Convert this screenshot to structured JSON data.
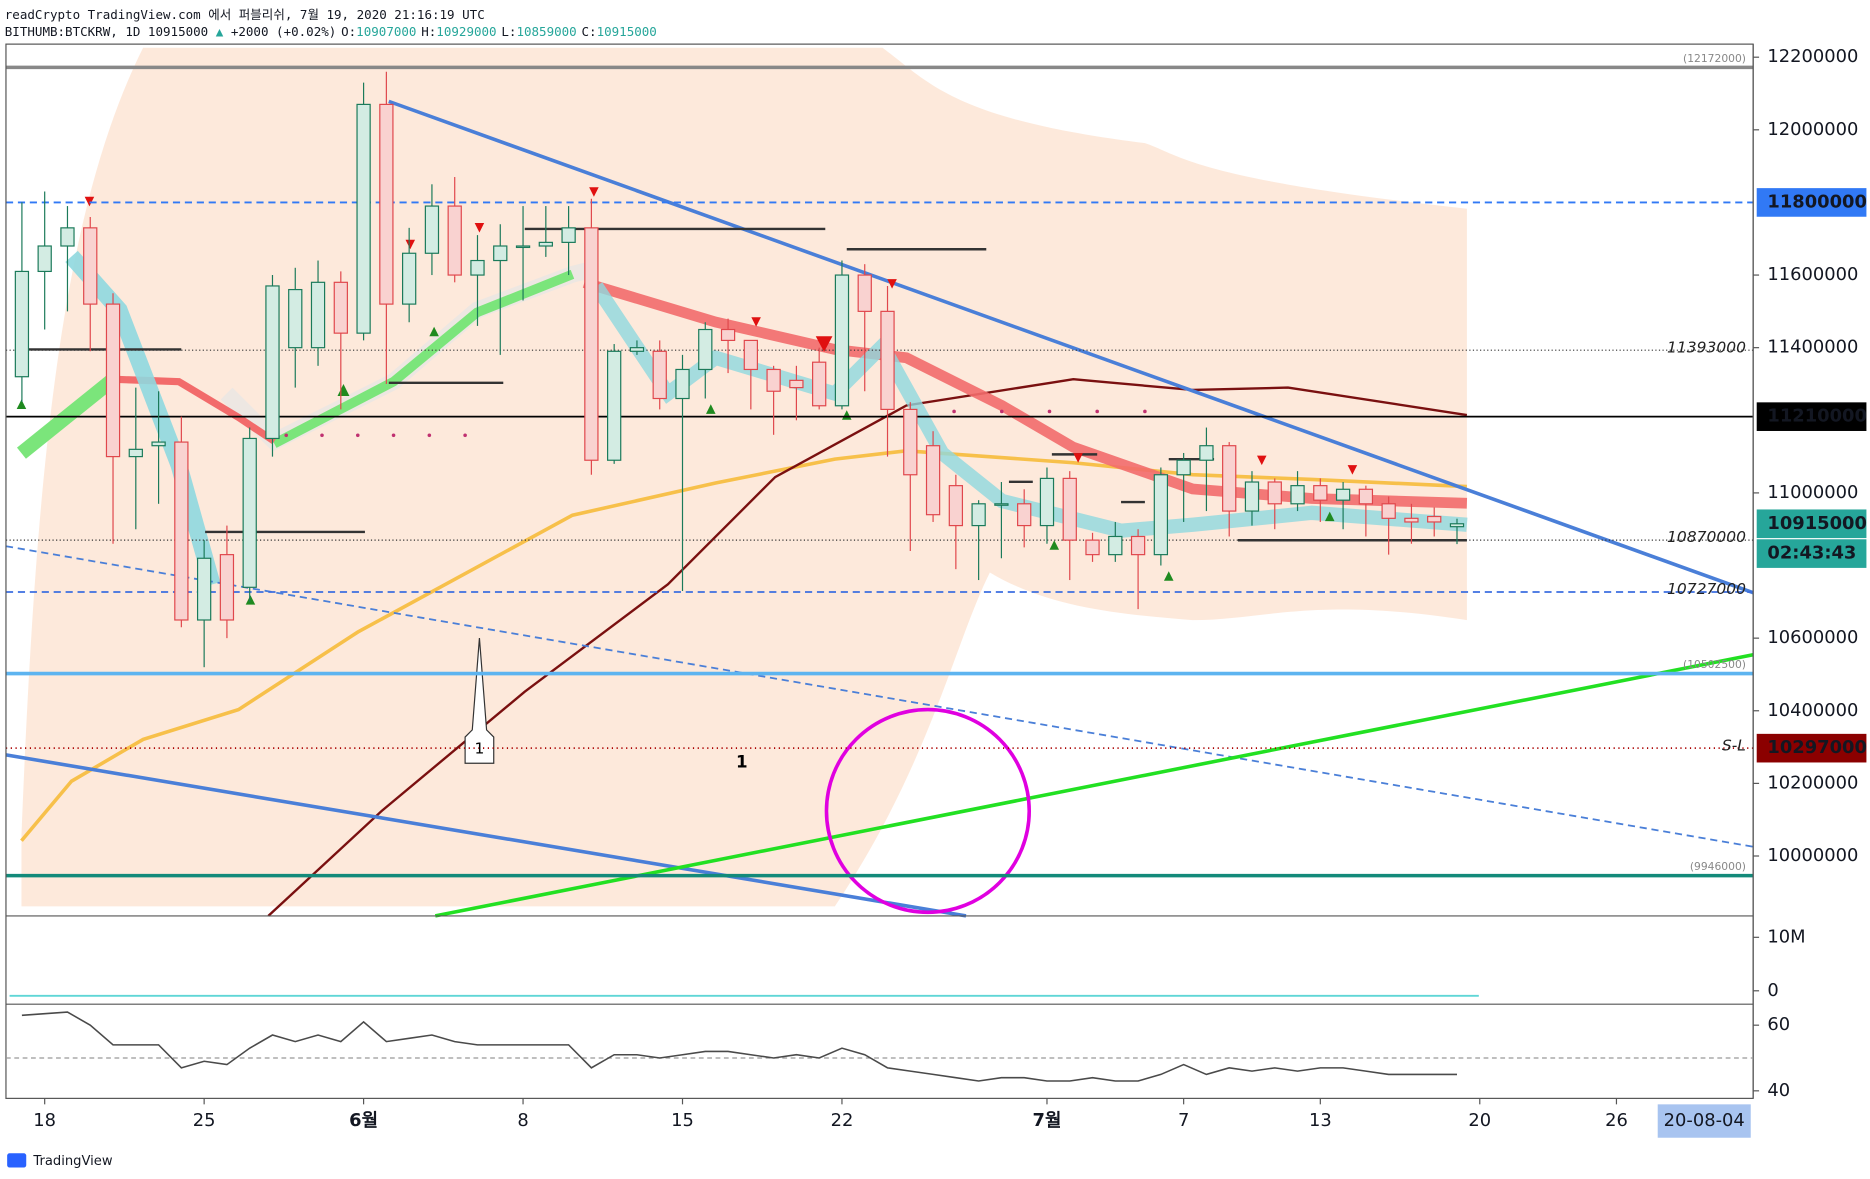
{
  "header": {
    "line1": "readCrypto TradingView.com 에서 퍼블리쉬, 7월 19, 2020 21:16:19 UTC",
    "symbol": "BITHUMB:BTCKRW, 1D 10915000",
    "change": "+2000 (+0.02%)",
    "ohlc": [
      {
        "key": "O:",
        "value": "10907000"
      },
      {
        "key": "H:",
        "value": "10929000"
      },
      {
        "key": "L:",
        "value": "10859000"
      },
      {
        "key": "C:",
        "value": "10915000"
      }
    ]
  },
  "chart_data": {
    "type": "candlestick",
    "up_color": "#1b7a5a",
    "down_color": "#e0474c",
    "candles": [
      {
        "o": 11320000,
        "h": 11800000,
        "l": 11250000,
        "c": 11610000
      },
      {
        "o": 11610000,
        "h": 11830000,
        "l": 11450000,
        "c": 11680000
      },
      {
        "o": 11680000,
        "h": 11790000,
        "l": 11500000,
        "c": 11730000
      },
      {
        "o": 11730000,
        "h": 11760000,
        "l": 11390000,
        "c": 11520000
      },
      {
        "o": 11520000,
        "h": 11550000,
        "l": 10860000,
        "c": 11100000
      },
      {
        "o": 11100000,
        "h": 11290000,
        "l": 10900000,
        "c": 11120000
      },
      {
        "o": 11130000,
        "h": 11280000,
        "l": 10970000,
        "c": 11140000
      },
      {
        "o": 11140000,
        "h": 11210000,
        "l": 10630000,
        "c": 10650000
      },
      {
        "o": 10650000,
        "h": 10870000,
        "l": 10520000,
        "c": 10820000
      },
      {
        "o": 10830000,
        "h": 10910000,
        "l": 10600000,
        "c": 10650000
      },
      {
        "o": 10740000,
        "h": 11180000,
        "l": 10700000,
        "c": 11150000
      },
      {
        "o": 11150000,
        "h": 11600000,
        "l": 11100000,
        "c": 11570000
      },
      {
        "o": 11400000,
        "h": 11620000,
        "l": 11290000,
        "c": 11560000
      },
      {
        "o": 11400000,
        "h": 11640000,
        "l": 11350000,
        "c": 11580000
      },
      {
        "o": 11580000,
        "h": 11610000,
        "l": 11230000,
        "c": 11440000
      },
      {
        "o": 11440000,
        "h": 12130000,
        "l": 11420000,
        "c": 12070000
      },
      {
        "o": 12070000,
        "h": 12160000,
        "l": 11300000,
        "c": 11520000
      },
      {
        "o": 11520000,
        "h": 11730000,
        "l": 11470000,
        "c": 11660000
      },
      {
        "o": 11660000,
        "h": 11850000,
        "l": 11600000,
        "c": 11790000
      },
      {
        "o": 11790000,
        "h": 11870000,
        "l": 11580000,
        "c": 11600000
      },
      {
        "o": 11600000,
        "h": 11710000,
        "l": 11460000,
        "c": 11640000
      },
      {
        "o": 11640000,
        "h": 11740000,
        "l": 11380000,
        "c": 11680000
      },
      {
        "o": 11680000,
        "h": 11790000,
        "l": 11530000,
        "c": 11680000
      },
      {
        "o": 11680000,
        "h": 11790000,
        "l": 11650000,
        "c": 11690000
      },
      {
        "o": 11690000,
        "h": 11790000,
        "l": 11600000,
        "c": 11730000
      },
      {
        "o": 11730000,
        "h": 11810000,
        "l": 11050000,
        "c": 11090000
      },
      {
        "o": 11090000,
        "h": 11410000,
        "l": 11080000,
        "c": 11390000
      },
      {
        "o": 11390000,
        "h": 11420000,
        "l": 11380000,
        "c": 11400000
      },
      {
        "o": 11390000,
        "h": 11420000,
        "l": 11230000,
        "c": 11260000
      },
      {
        "o": 11260000,
        "h": 11380000,
        "l": 10730000,
        "c": 11340000
      },
      {
        "o": 11340000,
        "h": 11470000,
        "l": 11260000,
        "c": 11450000
      },
      {
        "o": 11450000,
        "h": 11480000,
        "l": 11330000,
        "c": 11420000
      },
      {
        "o": 11420000,
        "h": 11420000,
        "l": 11230000,
        "c": 11340000
      },
      {
        "o": 11340000,
        "h": 11350000,
        "l": 11160000,
        "c": 11280000
      },
      {
        "o": 11310000,
        "h": 11350000,
        "l": 11200000,
        "c": 11290000
      },
      {
        "o": 11360000,
        "h": 11400000,
        "l": 11230000,
        "c": 11240000
      },
      {
        "o": 11240000,
        "h": 11640000,
        "l": 11230000,
        "c": 11600000
      },
      {
        "o": 11600000,
        "h": 11630000,
        "l": 11280000,
        "c": 11500000
      },
      {
        "o": 11500000,
        "h": 11570000,
        "l": 11100000,
        "c": 11230000
      },
      {
        "o": 11230000,
        "h": 11250000,
        "l": 10840000,
        "c": 11050000
      },
      {
        "o": 11130000,
        "h": 11170000,
        "l": 10920000,
        "c": 10940000
      },
      {
        "o": 11020000,
        "h": 11050000,
        "l": 10790000,
        "c": 10910000
      },
      {
        "o": 10910000,
        "h": 10980000,
        "l": 10760000,
        "c": 10970000
      },
      {
        "o": 10970000,
        "h": 11030000,
        "l": 10820000,
        "c": 10970000
      },
      {
        "o": 10970000,
        "h": 11010000,
        "l": 10850000,
        "c": 10910000
      },
      {
        "o": 10910000,
        "h": 11070000,
        "l": 10860000,
        "c": 11040000
      },
      {
        "o": 11040000,
        "h": 11060000,
        "l": 10760000,
        "c": 10870000
      },
      {
        "o": 10870000,
        "h": 10890000,
        "l": 10810000,
        "c": 10830000
      },
      {
        "o": 10830000,
        "h": 10920000,
        "l": 10810000,
        "c": 10880000
      },
      {
        "o": 10880000,
        "h": 10900000,
        "l": 10680000,
        "c": 10830000
      },
      {
        "o": 10830000,
        "h": 11070000,
        "l": 10800000,
        "c": 11050000
      },
      {
        "o": 11050000,
        "h": 11110000,
        "l": 10920000,
        "c": 11090000
      },
      {
        "o": 11090000,
        "h": 11180000,
        "l": 10950000,
        "c": 11130000
      },
      {
        "o": 11130000,
        "h": 11140000,
        "l": 10880000,
        "c": 10950000
      },
      {
        "o": 10950000,
        "h": 11060000,
        "l": 10910000,
        "c": 11030000
      },
      {
        "o": 11030000,
        "h": 11040000,
        "l": 10900000,
        "c": 10970000
      },
      {
        "o": 10970000,
        "h": 11060000,
        "l": 10950000,
        "c": 11020000
      },
      {
        "o": 11020000,
        "h": 11040000,
        "l": 10920000,
        "c": 10980000
      },
      {
        "o": 10980000,
        "h": 11030000,
        "l": 10900000,
        "c": 11010000
      },
      {
        "o": 11010000,
        "h": 11020000,
        "l": 10880000,
        "c": 10970000
      },
      {
        "o": 10970000,
        "h": 10990000,
        "l": 10830000,
        "c": 10930000
      },
      {
        "o": 10930000,
        "h": 10970000,
        "l": 10860000,
        "c": 10920000
      },
      {
        "o": 10935000,
        "h": 10960000,
        "l": 10880000,
        "c": 10920000
      },
      {
        "o": 10907000,
        "h": 10929000,
        "l": 10859000,
        "c": 10915000
      }
    ],
    "ylim": [
      9835000,
      12236000
    ],
    "yticks": [
      12200000,
      12000000,
      11600000,
      11400000,
      11000000,
      10600000,
      10400000,
      10200000,
      10000000
    ],
    "xlim": [
      -0.7,
      76
    ],
    "xticks": [
      {
        "value": 1,
        "label": "18"
      },
      {
        "value": 8,
        "label": "25"
      },
      {
        "value": 15,
        "label": "6월"
      },
      {
        "value": 22,
        "label": "8"
      },
      {
        "value": 29,
        "label": "15"
      },
      {
        "value": 36,
        "label": "22"
      },
      {
        "value": 45,
        "label": "7월"
      },
      {
        "value": 51,
        "label": "7"
      },
      {
        "value": 57,
        "label": "13"
      },
      {
        "value": 64,
        "label": "20"
      },
      {
        "value": 70,
        "label": "26"
      }
    ],
    "price_tags": [
      {
        "value": 11800000,
        "color": "#3179f5"
      },
      {
        "value": 11210000,
        "color": "#000000"
      },
      {
        "value": 10915000,
        "color": "#26a69a"
      },
      {
        "value": 10297000,
        "color": "#8b0000"
      }
    ],
    "countdown": "02:43:43",
    "level_labels": [
      {
        "value": 12172000,
        "label": "(12172000)"
      },
      {
        "value": 11393000,
        "label": "11393000"
      },
      {
        "value": 10870000,
        "label": "10870000"
      },
      {
        "value": 10727000,
        "label": "10727000"
      },
      {
        "value": 10502500,
        "label": "(10502500)"
      },
      {
        "value": 9946000,
        "label": "(9946000)"
      },
      {
        "value": 10297000,
        "label": "S-L"
      }
    ],
    "annotations": [
      "1",
      "1"
    ],
    "volume": {
      "ylim": [
        -2500000,
        14000000
      ],
      "yticks": [
        {
          "value": 10000000,
          "label": "10M"
        },
        0
      ]
    },
    "rsi": {
      "ylim": [
        37.7,
        66.4
      ],
      "yticks": [
        60,
        40
      ],
      "color": "#4a4a4a",
      "values": [
        63,
        63.5,
        64,
        60,
        54,
        54,
        54,
        47,
        49,
        48,
        53,
        57,
        55,
        57,
        55,
        61,
        55,
        56,
        57,
        55,
        54,
        54,
        54,
        54,
        54,
        47,
        51,
        51,
        50,
        51,
        52,
        52,
        51,
        50,
        51,
        50,
        53,
        51,
        47,
        46,
        45,
        44,
        43,
        44,
        44,
        43,
        43,
        44,
        43,
        43,
        45,
        48,
        45,
        47,
        46,
        47,
        46,
        47,
        47,
        46,
        45,
        45,
        45,
        45
      ]
    },
    "date_badge": "20-08-04"
  },
  "brand": "TradingView"
}
